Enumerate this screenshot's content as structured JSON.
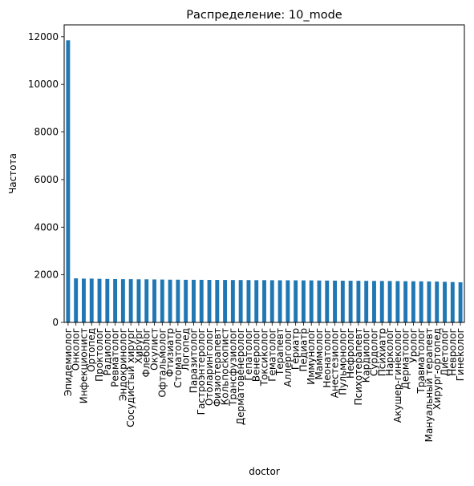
{
  "chart_data": {
    "type": "bar",
    "title": "Распределение: 10_mode",
    "xlabel": "doctor",
    "ylabel": "Частота",
    "ylim": [
      0,
      12500
    ],
    "yticks": [
      0,
      2000,
      4000,
      6000,
      8000,
      10000,
      12000
    ],
    "grid": false,
    "legend": "none",
    "bar_color": "#1f77b4",
    "categories": [
      "Эпидемиолог",
      "Онколог",
      "Инфекционист",
      "Ортопед",
      "Проктолог",
      "Радиолог",
      "Ревматолог",
      "Эндокринолог",
      "Сосудистый хирург",
      "Хирург",
      "Флеболог",
      "Окулист",
      "Офтальмолог",
      "Фтизиатр",
      "Стоматолог",
      "Логопед",
      "Паразитолог",
      "Гастроэнтеролог",
      "Отоларинголог",
      "Физиотерапевт",
      "Кольпоскопист",
      "Трансфузиолог",
      "Дерматовенеролог",
      "Гепатолог",
      "Венеролог",
      "Токсиколог",
      "Гематолог",
      "Терапевт",
      "Аллерголог",
      "Гериатр",
      "Педиатр",
      "Иммунолог",
      "Маммолог",
      "Неонатолог",
      "Анестезиолог",
      "Пульмонолог",
      "Нефролог",
      "Психотерапевт",
      "Кардиолог",
      "Сурдолог",
      "Психиатр",
      "Нарколог",
      "Акушер-гинеколог",
      "Дерматолог",
      "Уролог",
      "Травматолог",
      "Мануальный терапевт",
      "Хирург-ортопед",
      "Диетолог",
      "Невролог",
      "Гинеколог"
    ],
    "values": [
      11850,
      1850,
      1840,
      1840,
      1830,
      1825,
      1820,
      1815,
      1815,
      1810,
      1810,
      1805,
      1800,
      1795,
      1795,
      1790,
      1790,
      1788,
      1785,
      1785,
      1783,
      1780,
      1780,
      1778,
      1775,
      1775,
      1772,
      1770,
      1770,
      1768,
      1765,
      1765,
      1760,
      1758,
      1755,
      1752,
      1750,
      1748,
      1745,
      1742,
      1740,
      1738,
      1735,
      1730,
      1728,
      1725,
      1720,
      1715,
      1705,
      1695,
      1685
    ]
  }
}
